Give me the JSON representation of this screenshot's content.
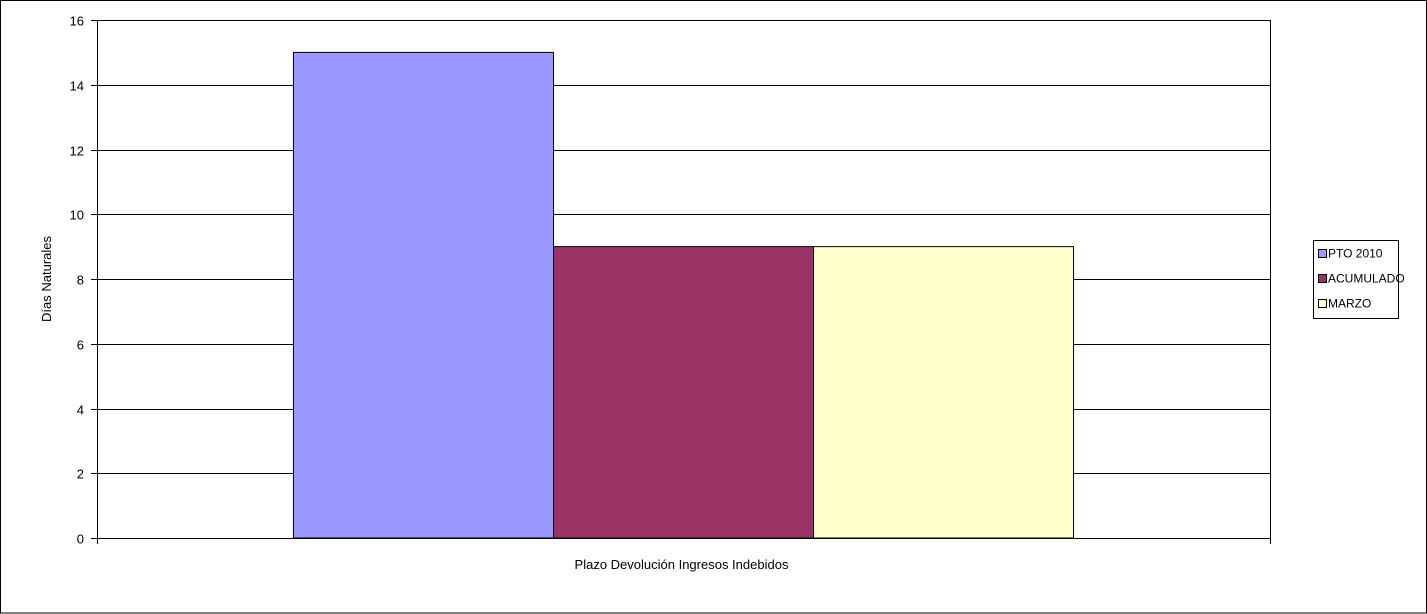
{
  "chart_data": {
    "type": "bar",
    "title": "",
    "categories": [
      "Plazo Devolución Ingresos Indebidos"
    ],
    "series": [
      {
        "name": "PTO  2010",
        "values": [
          15
        ],
        "color": "#9999FF"
      },
      {
        "name": "ACUMULADO",
        "values": [
          9
        ],
        "color": "#993366"
      },
      {
        "name": "MARZO",
        "values": [
          9
        ],
        "color": "#FFFFCC"
      }
    ],
    "xlabel": "Plazo Devolución Ingresos Indebidos",
    "ylabel": "Días Naturales",
    "ylim": [
      0,
      16
    ],
    "yticks": [
      0,
      2,
      4,
      6,
      8,
      10,
      12,
      14,
      16
    ],
    "grid": true,
    "legend": {
      "placement": "right",
      "entries": [
        "PTO  2010",
        "ACUMULADO",
        "MARZO"
      ]
    },
    "colors": {
      "border": "#000000",
      "gridline": "#000000",
      "background": "#FFFFFF"
    }
  }
}
